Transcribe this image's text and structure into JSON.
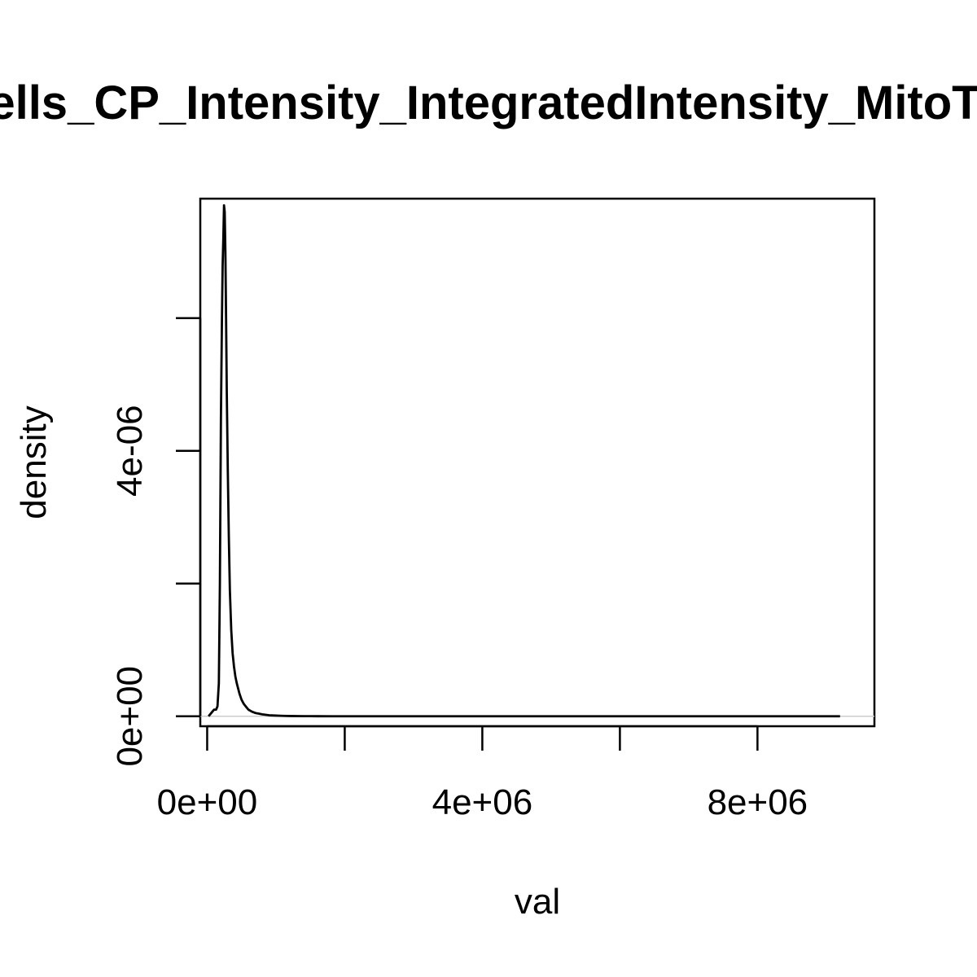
{
  "chart_data": {
    "type": "line",
    "title": "Cells_CP_Intensity_IntegratedIntensity_MitoTracker",
    "xlabel": "val",
    "ylabel": "density",
    "xlim": [
      -100000,
      9700000
    ],
    "ylim": [
      -1.5e-07,
      7.8e-06
    ],
    "x_ticks": [
      0,
      2000000,
      4000000,
      6000000,
      8000000
    ],
    "x_tick_labels": [
      "0e+00",
      "",
      "4e+06",
      "",
      "8e+06"
    ],
    "y_ticks": [
      0,
      2e-06,
      4e-06,
      6e-06
    ],
    "y_tick_labels": [
      "0e+00",
      "",
      "4e-06",
      ""
    ],
    "grid": false,
    "zero_line": true,
    "series": [
      {
        "x": [
          20000,
          60000,
          100000,
          130000,
          150000,
          170000,
          185000,
          200000,
          215000,
          225000,
          235000,
          245000,
          255000,
          265000,
          275000,
          285000,
          300000,
          315000,
          330000,
          350000,
          370000,
          390000,
          410000,
          430000,
          450000,
          470000,
          500000,
          530000,
          560000,
          600000,
          650000,
          700000,
          750000,
          800000,
          900000,
          1000000,
          1100000,
          1200000,
          1400000,
          1600000,
          1800000,
          2000000,
          3000000,
          4000000,
          5000000,
          6000000,
          7000000,
          8000000,
          9000000,
          9200000
        ],
        "y": [
          0,
          5e-08,
          1e-07,
          1e-07,
          1.5e-07,
          5e-07,
          2e-06,
          4.5e-06,
          6e-06,
          6.8e-06,
          7.2e-06,
          7.7e-06,
          7.6e-06,
          7e-06,
          6e-06,
          4.9e-06,
          3.7e-06,
          2.7e-06,
          1.9e-06,
          1.3e-06,
          9.5e-07,
          7.5e-07,
          6e-07,
          5e-07,
          4.2e-07,
          3.4e-07,
          2.5e-07,
          1.9e-07,
          1.5e-07,
          1e-07,
          7e-08,
          5e-08,
          4e-08,
          3e-08,
          1.5e-08,
          1e-08,
          6e-09,
          4e-09,
          2e-09,
          1e-09,
          0,
          0,
          0,
          0,
          0,
          0,
          0,
          0,
          0,
          0
        ]
      }
    ]
  }
}
